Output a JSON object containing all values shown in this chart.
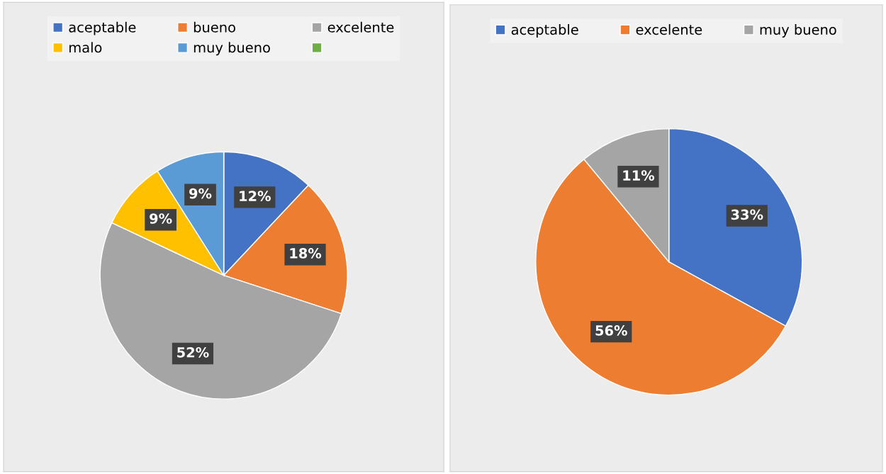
{
  "chart_data": [
    {
      "type": "pie",
      "categories": [
        "aceptable",
        "bueno",
        "excelente",
        "malo",
        "muy bueno",
        null
      ],
      "values": [
        12,
        18,
        52,
        9,
        9,
        0
      ],
      "colors": [
        "#4472c4",
        "#ed7d31",
        "#a5a5a5",
        "#ffc000",
        "#5b9bd5",
        "#70ad47"
      ],
      "value_labels": [
        "12%",
        "18%",
        "52%",
        "9%",
        "9%",
        null
      ],
      "legend": "top"
    },
    {
      "type": "pie",
      "categories": [
        "aceptable",
        "excelente",
        "muy bueno"
      ],
      "values": [
        33,
        56,
        11
      ],
      "colors": [
        "#4472c4",
        "#ed7d31",
        "#a5a5a5"
      ],
      "value_labels": [
        "33%",
        "56%",
        "11%"
      ],
      "legend": "top"
    }
  ]
}
